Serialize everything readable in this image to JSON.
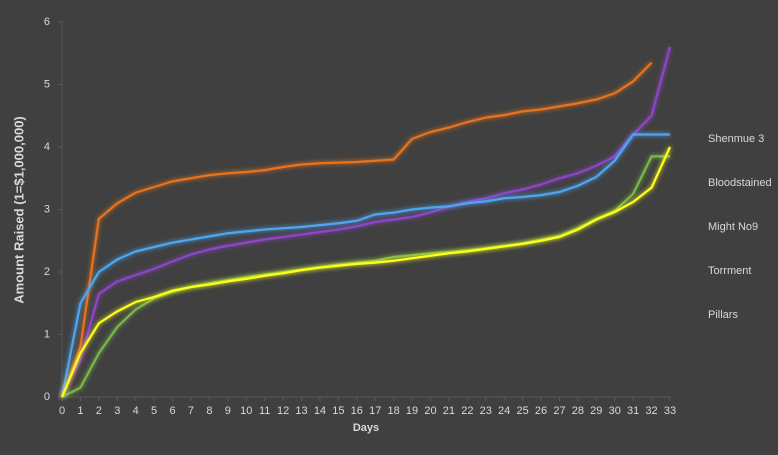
{
  "chart_data": {
    "type": "line",
    "x_label": "Days",
    "y_label": "Amount Raised (1=$1,000,000)",
    "x": [
      0,
      1,
      2,
      3,
      4,
      5,
      6,
      7,
      8,
      9,
      10,
      11,
      12,
      13,
      14,
      15,
      16,
      17,
      18,
      19,
      20,
      21,
      22,
      23,
      24,
      25,
      26,
      27,
      28,
      29,
      30,
      31,
      32,
      33
    ],
    "xlim": [
      0,
      33
    ],
    "xticks": [
      0,
      1,
      2,
      3,
      4,
      5,
      6,
      7,
      8,
      9,
      10,
      11,
      12,
      13,
      14,
      15,
      16,
      17,
      18,
      19,
      20,
      21,
      22,
      23,
      24,
      25,
      26,
      27,
      28,
      29,
      30,
      31,
      32,
      33
    ],
    "ylim": [
      0,
      6
    ],
    "yticks": [
      0,
      1,
      2,
      3,
      4,
      5,
      6
    ],
    "grid": false,
    "legend": "right",
    "series": [
      {
        "name": "Shenmue 3",
        "color": "#e8731e",
        "values": [
          0,
          0.8,
          2.85,
          3.1,
          3.27,
          3.36,
          3.45,
          3.5,
          3.55,
          3.58,
          3.6,
          3.63,
          3.68,
          3.72,
          3.74,
          3.75,
          3.76,
          3.78,
          3.8,
          4.13,
          4.24,
          4.31,
          4.4,
          4.47,
          4.51,
          4.57,
          4.6,
          4.65,
          4.7,
          4.76,
          4.86,
          5.05,
          5.35,
          null
        ]
      },
      {
        "name": "Bloodstained",
        "color": "#8e44c9",
        "values": [
          0,
          0.6,
          1.65,
          1.85,
          1.95,
          2.05,
          2.17,
          2.28,
          2.36,
          2.42,
          2.47,
          2.52,
          2.56,
          2.6,
          2.64,
          2.68,
          2.73,
          2.8,
          2.84,
          2.88,
          2.95,
          3.05,
          3.12,
          3.18,
          3.26,
          3.32,
          3.4,
          3.5,
          3.58,
          3.7,
          3.85,
          4.2,
          4.5,
          5.6
        ]
      },
      {
        "name": "Might No9",
        "color": "#7ab648",
        "values": [
          0,
          0.15,
          0.7,
          1.12,
          1.4,
          1.58,
          1.68,
          1.76,
          1.82,
          1.87,
          1.92,
          1.96,
          2,
          2.04,
          2.08,
          2.12,
          2.15,
          2.18,
          2.24,
          2.27,
          2.3,
          2.32,
          2.35,
          2.38,
          2.42,
          2.46,
          2.52,
          2.58,
          2.7,
          2.85,
          2.98,
          3.25,
          3.85,
          3.85
        ]
      },
      {
        "name": "Torrment",
        "color": "#4ea6f0",
        "values": [
          0,
          1.5,
          2.0,
          2.2,
          2.33,
          2.4,
          2.47,
          2.52,
          2.57,
          2.62,
          2.65,
          2.68,
          2.7,
          2.72,
          2.75,
          2.78,
          2.82,
          2.92,
          2.95,
          3.0,
          3.03,
          3.05,
          3.1,
          3.13,
          3.18,
          3.2,
          3.23,
          3.28,
          3.38,
          3.52,
          3.78,
          4.2,
          4.2,
          4.2
        ]
      },
      {
        "name": "Pillars",
        "color": "#ffff1a",
        "values": [
          0,
          0.7,
          1.18,
          1.37,
          1.52,
          1.6,
          1.7,
          1.76,
          1.8,
          1.85,
          1.89,
          1.94,
          1.98,
          2.03,
          2.07,
          2.1,
          2.13,
          2.15,
          2.18,
          2.22,
          2.26,
          2.3,
          2.33,
          2.37,
          2.41,
          2.45,
          2.5,
          2.56,
          2.68,
          2.84,
          2.96,
          3.12,
          3.35,
          4.0
        ]
      }
    ]
  }
}
